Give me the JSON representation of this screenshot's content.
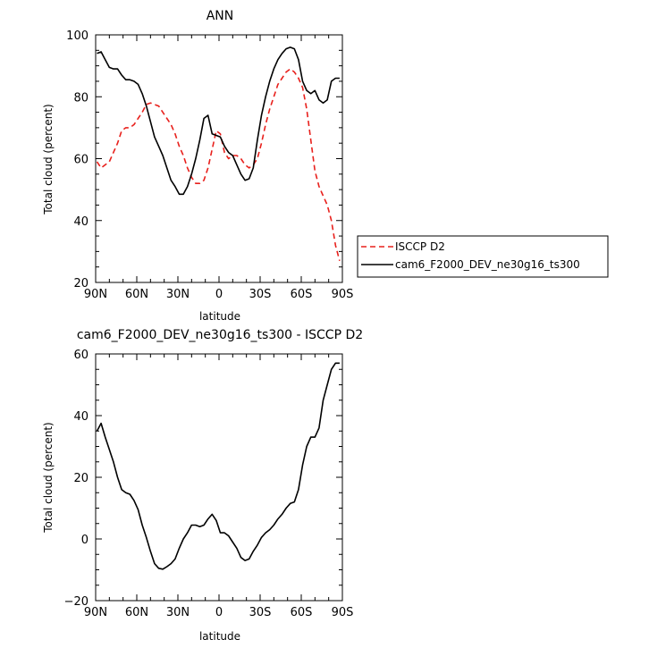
{
  "chart_data": [
    {
      "type": "line",
      "title": "ANN",
      "xlabel": "latitude",
      "ylabel": "Total cloud (percent)",
      "xlim": [
        -90,
        90
      ],
      "ylim": [
        20,
        100
      ],
      "x_ticks": [
        -90,
        -60,
        -30,
        0,
        30,
        60,
        90
      ],
      "x_tick_labels": [
        "90N",
        "60N",
        "30N",
        "0",
        "30S",
        "60S",
        "90S"
      ],
      "y_ticks": [
        20,
        40,
        60,
        80,
        100
      ],
      "y_tick_labels": [
        "20",
        "40",
        "60",
        "80",
        "100"
      ],
      "grid": false,
      "legend_position": "right",
      "series": [
        {
          "name": "ISCCP D2",
          "color": "#e8201c",
          "dashed": true,
          "x": [
            -89,
            -86,
            -83,
            -80,
            -77,
            -74,
            -71,
            -68,
            -65,
            -62,
            -59,
            -56,
            -53,
            -50,
            -47,
            -44,
            -41,
            -38,
            -35,
            -32,
            -29,
            -26,
            -23,
            -20,
            -17,
            -14,
            -11,
            -8,
            -5,
            -2,
            1,
            4,
            7,
            10,
            13,
            16,
            19,
            22,
            25,
            28,
            31,
            34,
            37,
            40,
            43,
            46,
            49,
            52,
            55,
            58,
            61,
            64,
            67,
            70,
            73,
            76,
            79,
            82,
            85,
            88
          ],
          "y": [
            59,
            57,
            58,
            59,
            62,
            65,
            69,
            70,
            70,
            71,
            73,
            75,
            77.5,
            78,
            77.5,
            77,
            75,
            73,
            71,
            68,
            64,
            61,
            57,
            54,
            52,
            52,
            53,
            57,
            63,
            69,
            68,
            62,
            60,
            61,
            61,
            60,
            58,
            57,
            58,
            60,
            65,
            71,
            76,
            80,
            84,
            86,
            88,
            89,
            88,
            86,
            83,
            76,
            66,
            56,
            51,
            48,
            45,
            40,
            32,
            27
          ]
        },
        {
          "name": "cam6_F2000_DEV_ne30g16_ts300",
          "color": "#000000",
          "dashed": false,
          "x": [
            -89,
            -86,
            -83,
            -80,
            -77,
            -74,
            -71,
            -68,
            -65,
            -62,
            -59,
            -56,
            -53,
            -50,
            -47,
            -44,
            -41,
            -38,
            -35,
            -32,
            -29,
            -26,
            -23,
            -20,
            -17,
            -14,
            -11,
            -8,
            -5,
            -2,
            1,
            4,
            7,
            10,
            13,
            16,
            19,
            22,
            25,
            28,
            31,
            34,
            37,
            40,
            43,
            46,
            49,
            52,
            55,
            58,
            61,
            64,
            67,
            70,
            73,
            76,
            79,
            82,
            85,
            88
          ],
          "y": [
            94,
            94.5,
            92,
            89.5,
            89,
            89,
            87,
            85.5,
            85.5,
            85,
            84,
            81,
            77,
            72,
            67,
            64,
            61,
            57,
            53,
            51,
            48.5,
            48.5,
            51,
            55,
            60,
            66,
            73,
            74,
            68,
            67.5,
            67,
            64,
            62,
            61,
            58,
            55,
            53,
            53.5,
            57,
            66,
            74,
            80,
            85,
            89,
            92,
            94,
            95.5,
            96,
            95.5,
            92,
            85,
            82,
            81,
            82,
            79,
            78,
            79,
            85,
            86,
            86
          ]
        }
      ]
    },
    {
      "type": "line",
      "title": "cam6_F2000_DEV_ne30g16_ts300 - ISCCP D2",
      "xlabel": "latitude",
      "ylabel": "Total cloud (percent)",
      "xlim": [
        -90,
        90
      ],
      "ylim": [
        -20,
        60
      ],
      "x_ticks": [
        -90,
        -60,
        -30,
        0,
        30,
        60,
        90
      ],
      "x_tick_labels": [
        "90N",
        "60N",
        "30N",
        "0",
        "30S",
        "60S",
        "90S"
      ],
      "y_ticks": [
        -20,
        0,
        20,
        40,
        60
      ],
      "y_tick_labels": [
        "−20",
        "0",
        "20",
        "40",
        "60"
      ],
      "grid": false,
      "series": [
        {
          "color": "#000000",
          "dashed": false,
          "x": [
            -89,
            -86,
            -83,
            -80,
            -77,
            -74,
            -71,
            -68,
            -65,
            -62,
            -59,
            -56,
            -53,
            -50,
            -47,
            -44,
            -41,
            -38,
            -35,
            -32,
            -29,
            -26,
            -23,
            -20,
            -17,
            -14,
            -11,
            -8,
            -5,
            -2,
            1,
            4,
            7,
            10,
            13,
            16,
            19,
            22,
            25,
            28,
            31,
            34,
            37,
            40,
            43,
            46,
            49,
            52,
            55,
            58,
            61,
            64,
            67,
            70,
            73,
            76,
            79,
            82,
            85,
            88
          ],
          "y": [
            35,
            37.5,
            33,
            29,
            25,
            20,
            16,
            15,
            14.5,
            12.5,
            9.5,
            4.5,
            0.5,
            -4,
            -8,
            -9.5,
            -9.8,
            -9,
            -8,
            -6.5,
            -3,
            0,
            2,
            4.5,
            4.5,
            4,
            4.5,
            6.5,
            8,
            6,
            2,
            2,
            1,
            -1,
            -3,
            -6,
            -7,
            -6.5,
            -4,
            -2,
            0.5,
            2,
            3,
            4.5,
            6.5,
            8,
            10,
            11.5,
            12,
            16,
            24,
            30,
            33,
            33,
            36,
            45,
            50,
            55,
            57,
            57
          ]
        }
      ]
    }
  ]
}
